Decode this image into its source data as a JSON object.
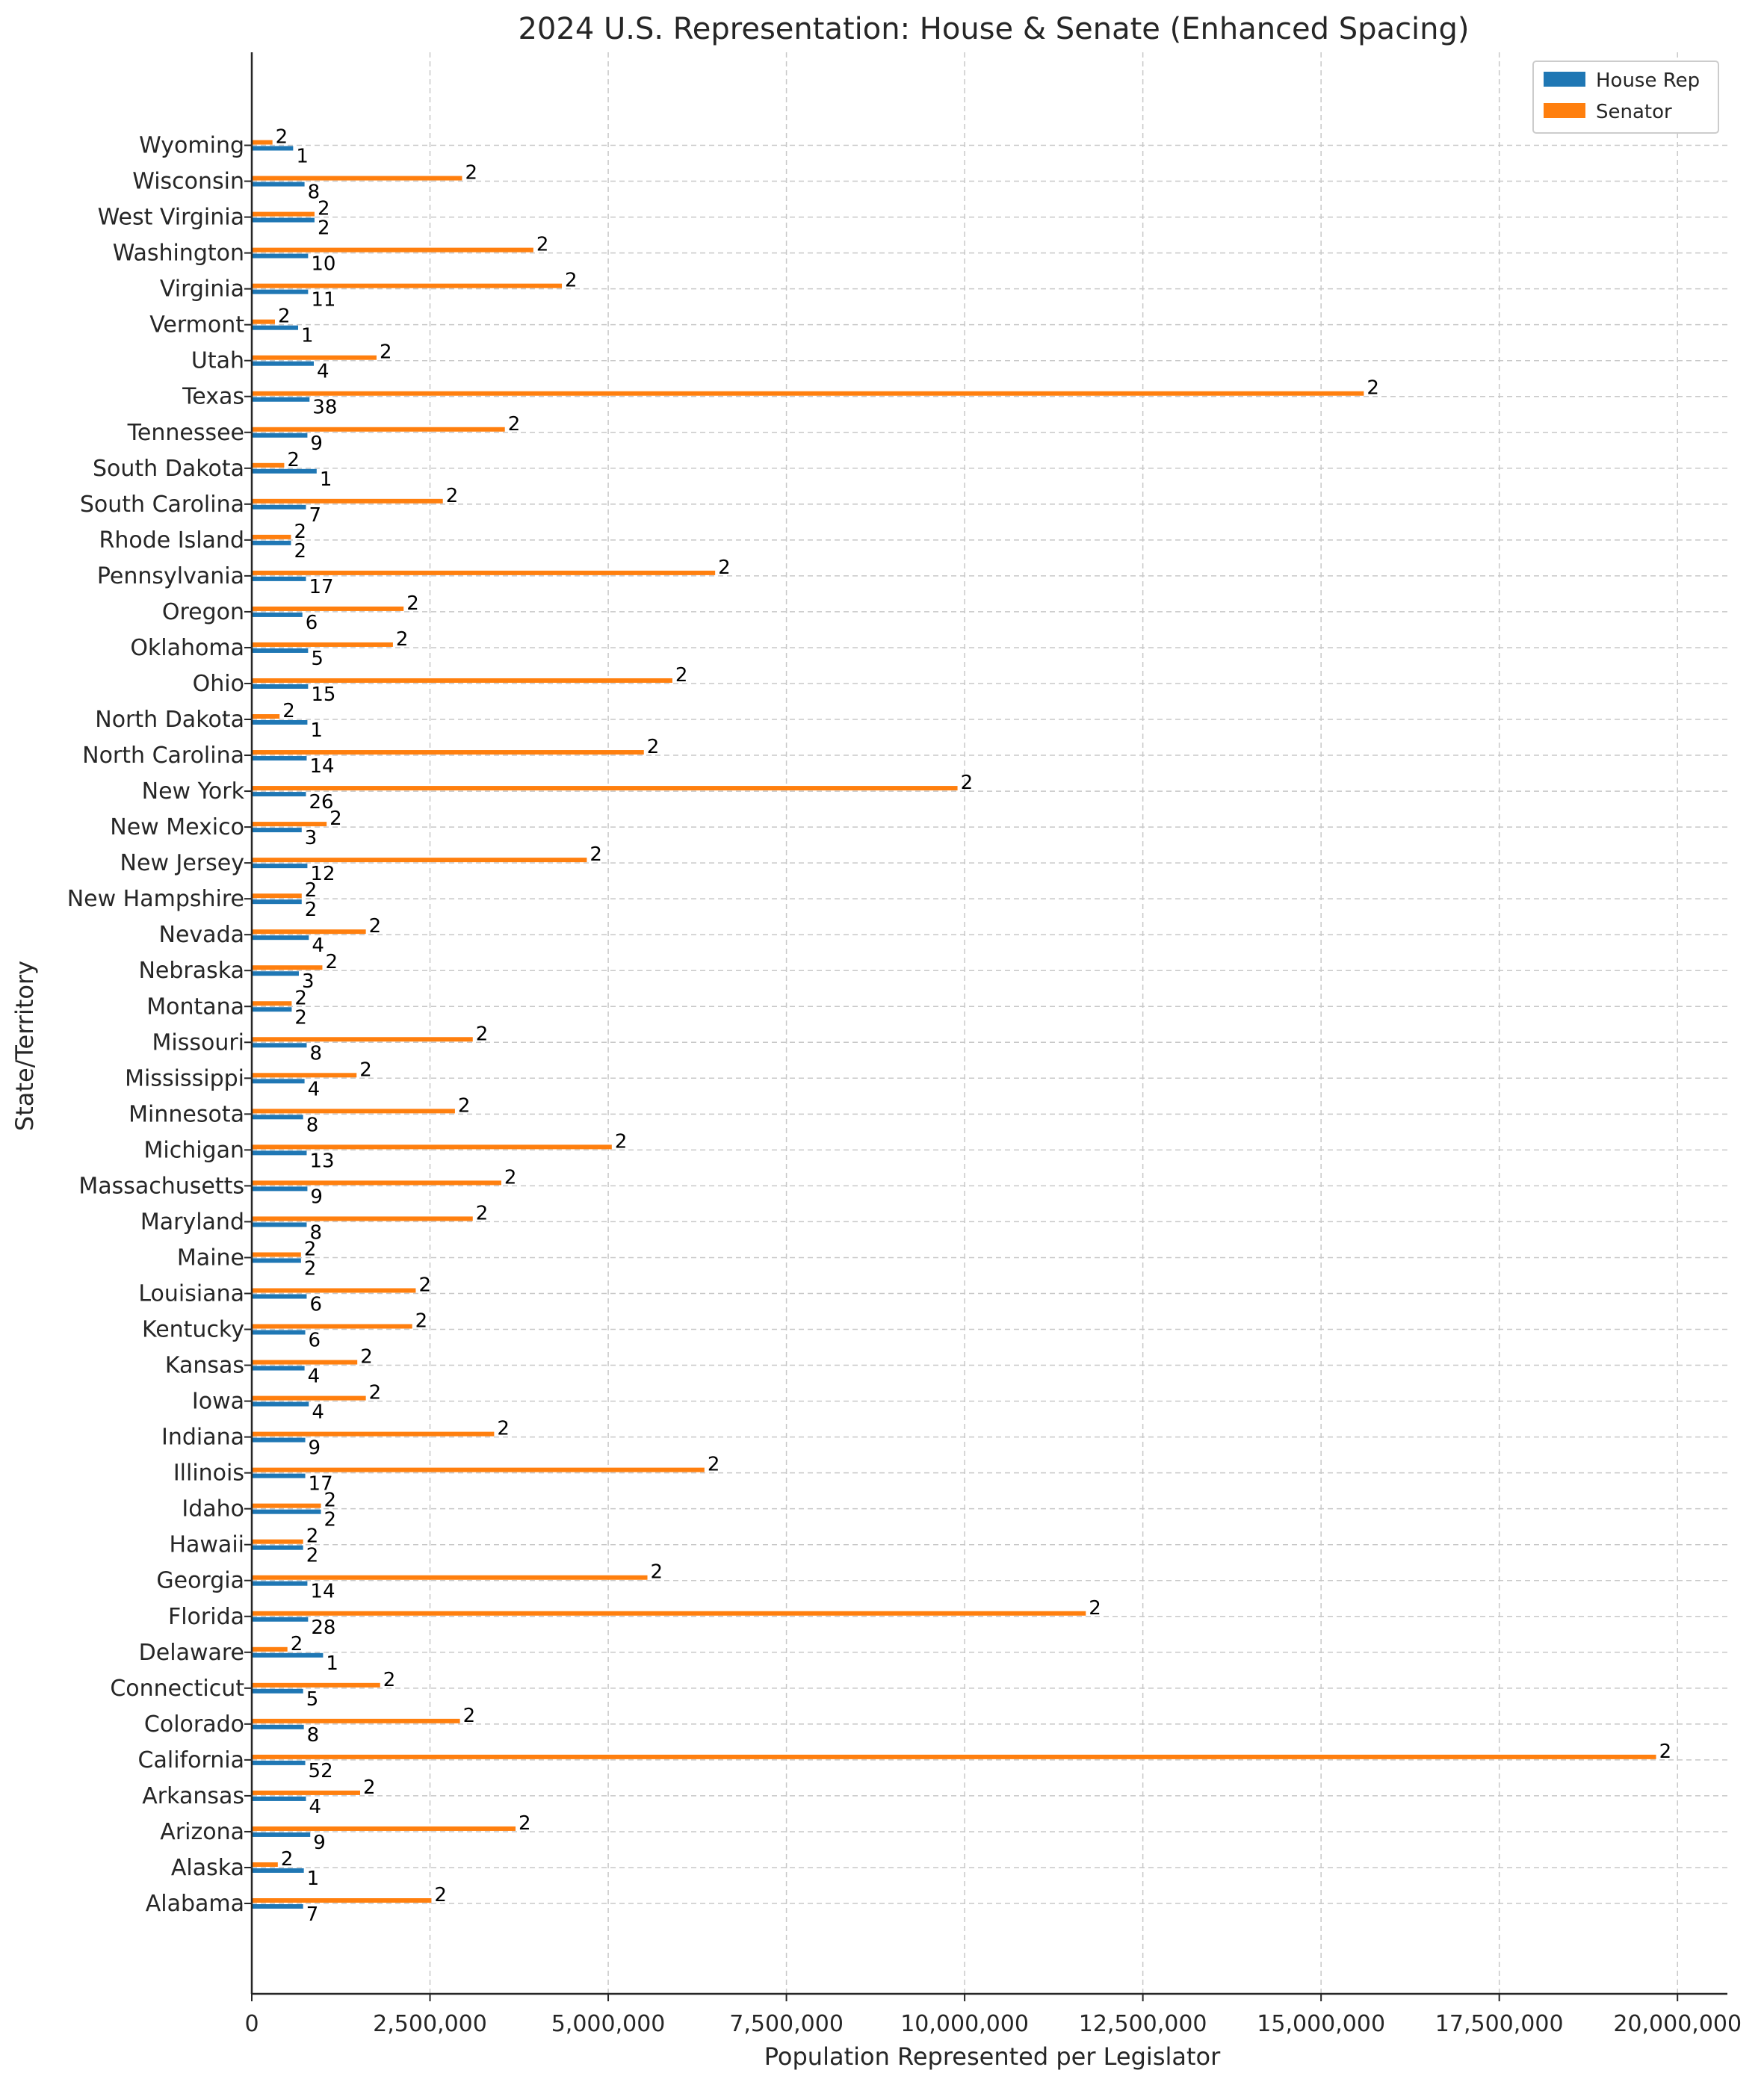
{
  "chart_data": {
    "type": "bar",
    "orientation": "horizontal",
    "title": "2024 U.S. Representation: House & Senate (Enhanced Spacing)",
    "xlabel": "Population Represented per Legislator",
    "ylabel": "State/Territory",
    "xlim": [
      0,
      20700000
    ],
    "x_ticks": [
      0,
      2500000,
      5000000,
      7500000,
      10000000,
      12500000,
      15000000,
      17500000,
      20000000
    ],
    "x_tick_labels": [
      "0",
      "2,500,000",
      "5,000,000",
      "7,500,000",
      "10,000,000",
      "12,500,000",
      "15,000,000",
      "17,500,000",
      "20,000,000"
    ],
    "grid": true,
    "legend_position": "top-right",
    "colors": {
      "house": "#1f77b4",
      "senate": "#ff7f0e"
    },
    "series": [
      {
        "name": "House Rep",
        "key": "house"
      },
      {
        "name": "Senator",
        "key": "senate"
      }
    ],
    "categories": [
      {
        "state": "Alabama",
        "house_value": 720000,
        "house_count": "7",
        "senate_value": 2520000,
        "senate_count": "2"
      },
      {
        "state": "Alaska",
        "house_value": 730000,
        "house_count": "1",
        "senate_value": 365000,
        "senate_count": "2"
      },
      {
        "state": "Arizona",
        "house_value": 820000,
        "house_count": "9",
        "senate_value": 3700000,
        "senate_count": "2"
      },
      {
        "state": "Arkansas",
        "house_value": 760000,
        "house_count": "4",
        "senate_value": 1520000,
        "senate_count": "2"
      },
      {
        "state": "California",
        "house_value": 750000,
        "house_count": "52",
        "senate_value": 19700000,
        "senate_count": "2"
      },
      {
        "state": "Colorado",
        "house_value": 730000,
        "house_count": "8",
        "senate_value": 2920000,
        "senate_count": "2"
      },
      {
        "state": "Connecticut",
        "house_value": 720000,
        "house_count": "5",
        "senate_value": 1800000,
        "senate_count": "2"
      },
      {
        "state": "Delaware",
        "house_value": 1000000,
        "house_count": "1",
        "senate_value": 500000,
        "senate_count": "2"
      },
      {
        "state": "Florida",
        "house_value": 790000,
        "house_count": "28",
        "senate_value": 11700000,
        "senate_count": "2"
      },
      {
        "state": "Georgia",
        "house_value": 780000,
        "house_count": "14",
        "senate_value": 5550000,
        "senate_count": "2"
      },
      {
        "state": "Hawaii",
        "house_value": 720000,
        "house_count": "2",
        "senate_value": 720000,
        "senate_count": "2"
      },
      {
        "state": "Idaho",
        "house_value": 970000,
        "house_count": "2",
        "senate_value": 970000,
        "senate_count": "2"
      },
      {
        "state": "Illinois",
        "house_value": 750000,
        "house_count": "17",
        "senate_value": 6350000,
        "senate_count": "2"
      },
      {
        "state": "Indiana",
        "house_value": 750000,
        "house_count": "9",
        "senate_value": 3400000,
        "senate_count": "2"
      },
      {
        "state": "Iowa",
        "house_value": 800000,
        "house_count": "4",
        "senate_value": 1600000,
        "senate_count": "2"
      },
      {
        "state": "Kansas",
        "house_value": 740000,
        "house_count": "4",
        "senate_value": 1480000,
        "senate_count": "2"
      },
      {
        "state": "Kentucky",
        "house_value": 750000,
        "house_count": "6",
        "senate_value": 2250000,
        "senate_count": "2"
      },
      {
        "state": "Louisiana",
        "house_value": 770000,
        "house_count": "6",
        "senate_value": 2300000,
        "senate_count": "2"
      },
      {
        "state": "Maine",
        "house_value": 690000,
        "house_count": "2",
        "senate_value": 690000,
        "senate_count": "2"
      },
      {
        "state": "Maryland",
        "house_value": 770000,
        "house_count": "8",
        "senate_value": 3100000,
        "senate_count": "2"
      },
      {
        "state": "Massachusetts",
        "house_value": 780000,
        "house_count": "9",
        "senate_value": 3500000,
        "senate_count": "2"
      },
      {
        "state": "Michigan",
        "house_value": 770000,
        "house_count": "13",
        "senate_value": 5050000,
        "senate_count": "2"
      },
      {
        "state": "Minnesota",
        "house_value": 720000,
        "house_count": "8",
        "senate_value": 2850000,
        "senate_count": "2"
      },
      {
        "state": "Mississippi",
        "house_value": 740000,
        "house_count": "4",
        "senate_value": 1470000,
        "senate_count": "2"
      },
      {
        "state": "Missouri",
        "house_value": 770000,
        "house_count": "8",
        "senate_value": 3100000,
        "senate_count": "2"
      },
      {
        "state": "Montana",
        "house_value": 560000,
        "house_count": "2",
        "senate_value": 560000,
        "senate_count": "2"
      },
      {
        "state": "Nebraska",
        "house_value": 660000,
        "house_count": "3",
        "senate_value": 990000,
        "senate_count": "2"
      },
      {
        "state": "Nevada",
        "house_value": 800000,
        "house_count": "4",
        "senate_value": 1600000,
        "senate_count": "2"
      },
      {
        "state": "New Hampshire",
        "house_value": 700000,
        "house_count": "2",
        "senate_value": 700000,
        "senate_count": "2"
      },
      {
        "state": "New Jersey",
        "house_value": 780000,
        "house_count": "12",
        "senate_value": 4700000,
        "senate_count": "2"
      },
      {
        "state": "New Mexico",
        "house_value": 700000,
        "house_count": "3",
        "senate_value": 1050000,
        "senate_count": "2"
      },
      {
        "state": "New York",
        "house_value": 760000,
        "house_count": "26",
        "senate_value": 9900000,
        "senate_count": "2"
      },
      {
        "state": "North Carolina",
        "house_value": 770000,
        "house_count": "14",
        "senate_value": 5500000,
        "senate_count": "2"
      },
      {
        "state": "North Dakota",
        "house_value": 780000,
        "house_count": "1",
        "senate_value": 390000,
        "senate_count": "2"
      },
      {
        "state": "Ohio",
        "house_value": 790000,
        "house_count": "15",
        "senate_value": 5900000,
        "senate_count": "2"
      },
      {
        "state": "Oklahoma",
        "house_value": 790000,
        "house_count": "5",
        "senate_value": 1980000,
        "senate_count": "2"
      },
      {
        "state": "Oregon",
        "house_value": 710000,
        "house_count": "6",
        "senate_value": 2130000,
        "senate_count": "2"
      },
      {
        "state": "Pennsylvania",
        "house_value": 760000,
        "house_count": "17",
        "senate_value": 6500000,
        "senate_count": "2"
      },
      {
        "state": "Rhode Island",
        "house_value": 550000,
        "house_count": "2",
        "senate_value": 550000,
        "senate_count": "2"
      },
      {
        "state": "South Carolina",
        "house_value": 760000,
        "house_count": "7",
        "senate_value": 2680000,
        "senate_count": "2"
      },
      {
        "state": "South Dakota",
        "house_value": 910000,
        "house_count": "1",
        "senate_value": 455000,
        "senate_count": "2"
      },
      {
        "state": "Tennessee",
        "house_value": 780000,
        "house_count": "9",
        "senate_value": 3550000,
        "senate_count": "2"
      },
      {
        "state": "Texas",
        "house_value": 810000,
        "house_count": "38",
        "senate_value": 15600000,
        "senate_count": "2"
      },
      {
        "state": "Utah",
        "house_value": 870000,
        "house_count": "4",
        "senate_value": 1750000,
        "senate_count": "2"
      },
      {
        "state": "Vermont",
        "house_value": 650000,
        "house_count": "1",
        "senate_value": 325000,
        "senate_count": "2"
      },
      {
        "state": "Virginia",
        "house_value": 790000,
        "house_count": "11",
        "senate_value": 4350000,
        "senate_count": "2"
      },
      {
        "state": "Washington",
        "house_value": 790000,
        "house_count": "10",
        "senate_value": 3950000,
        "senate_count": "2"
      },
      {
        "state": "West Virginia",
        "house_value": 880000,
        "house_count": "2",
        "senate_value": 880000,
        "senate_count": "2"
      },
      {
        "state": "Wisconsin",
        "house_value": 740000,
        "house_count": "8",
        "senate_value": 2950000,
        "senate_count": "2"
      },
      {
        "state": "Wyoming",
        "house_value": 580000,
        "house_count": "1",
        "senate_value": 290000,
        "senate_count": "2"
      }
    ]
  }
}
